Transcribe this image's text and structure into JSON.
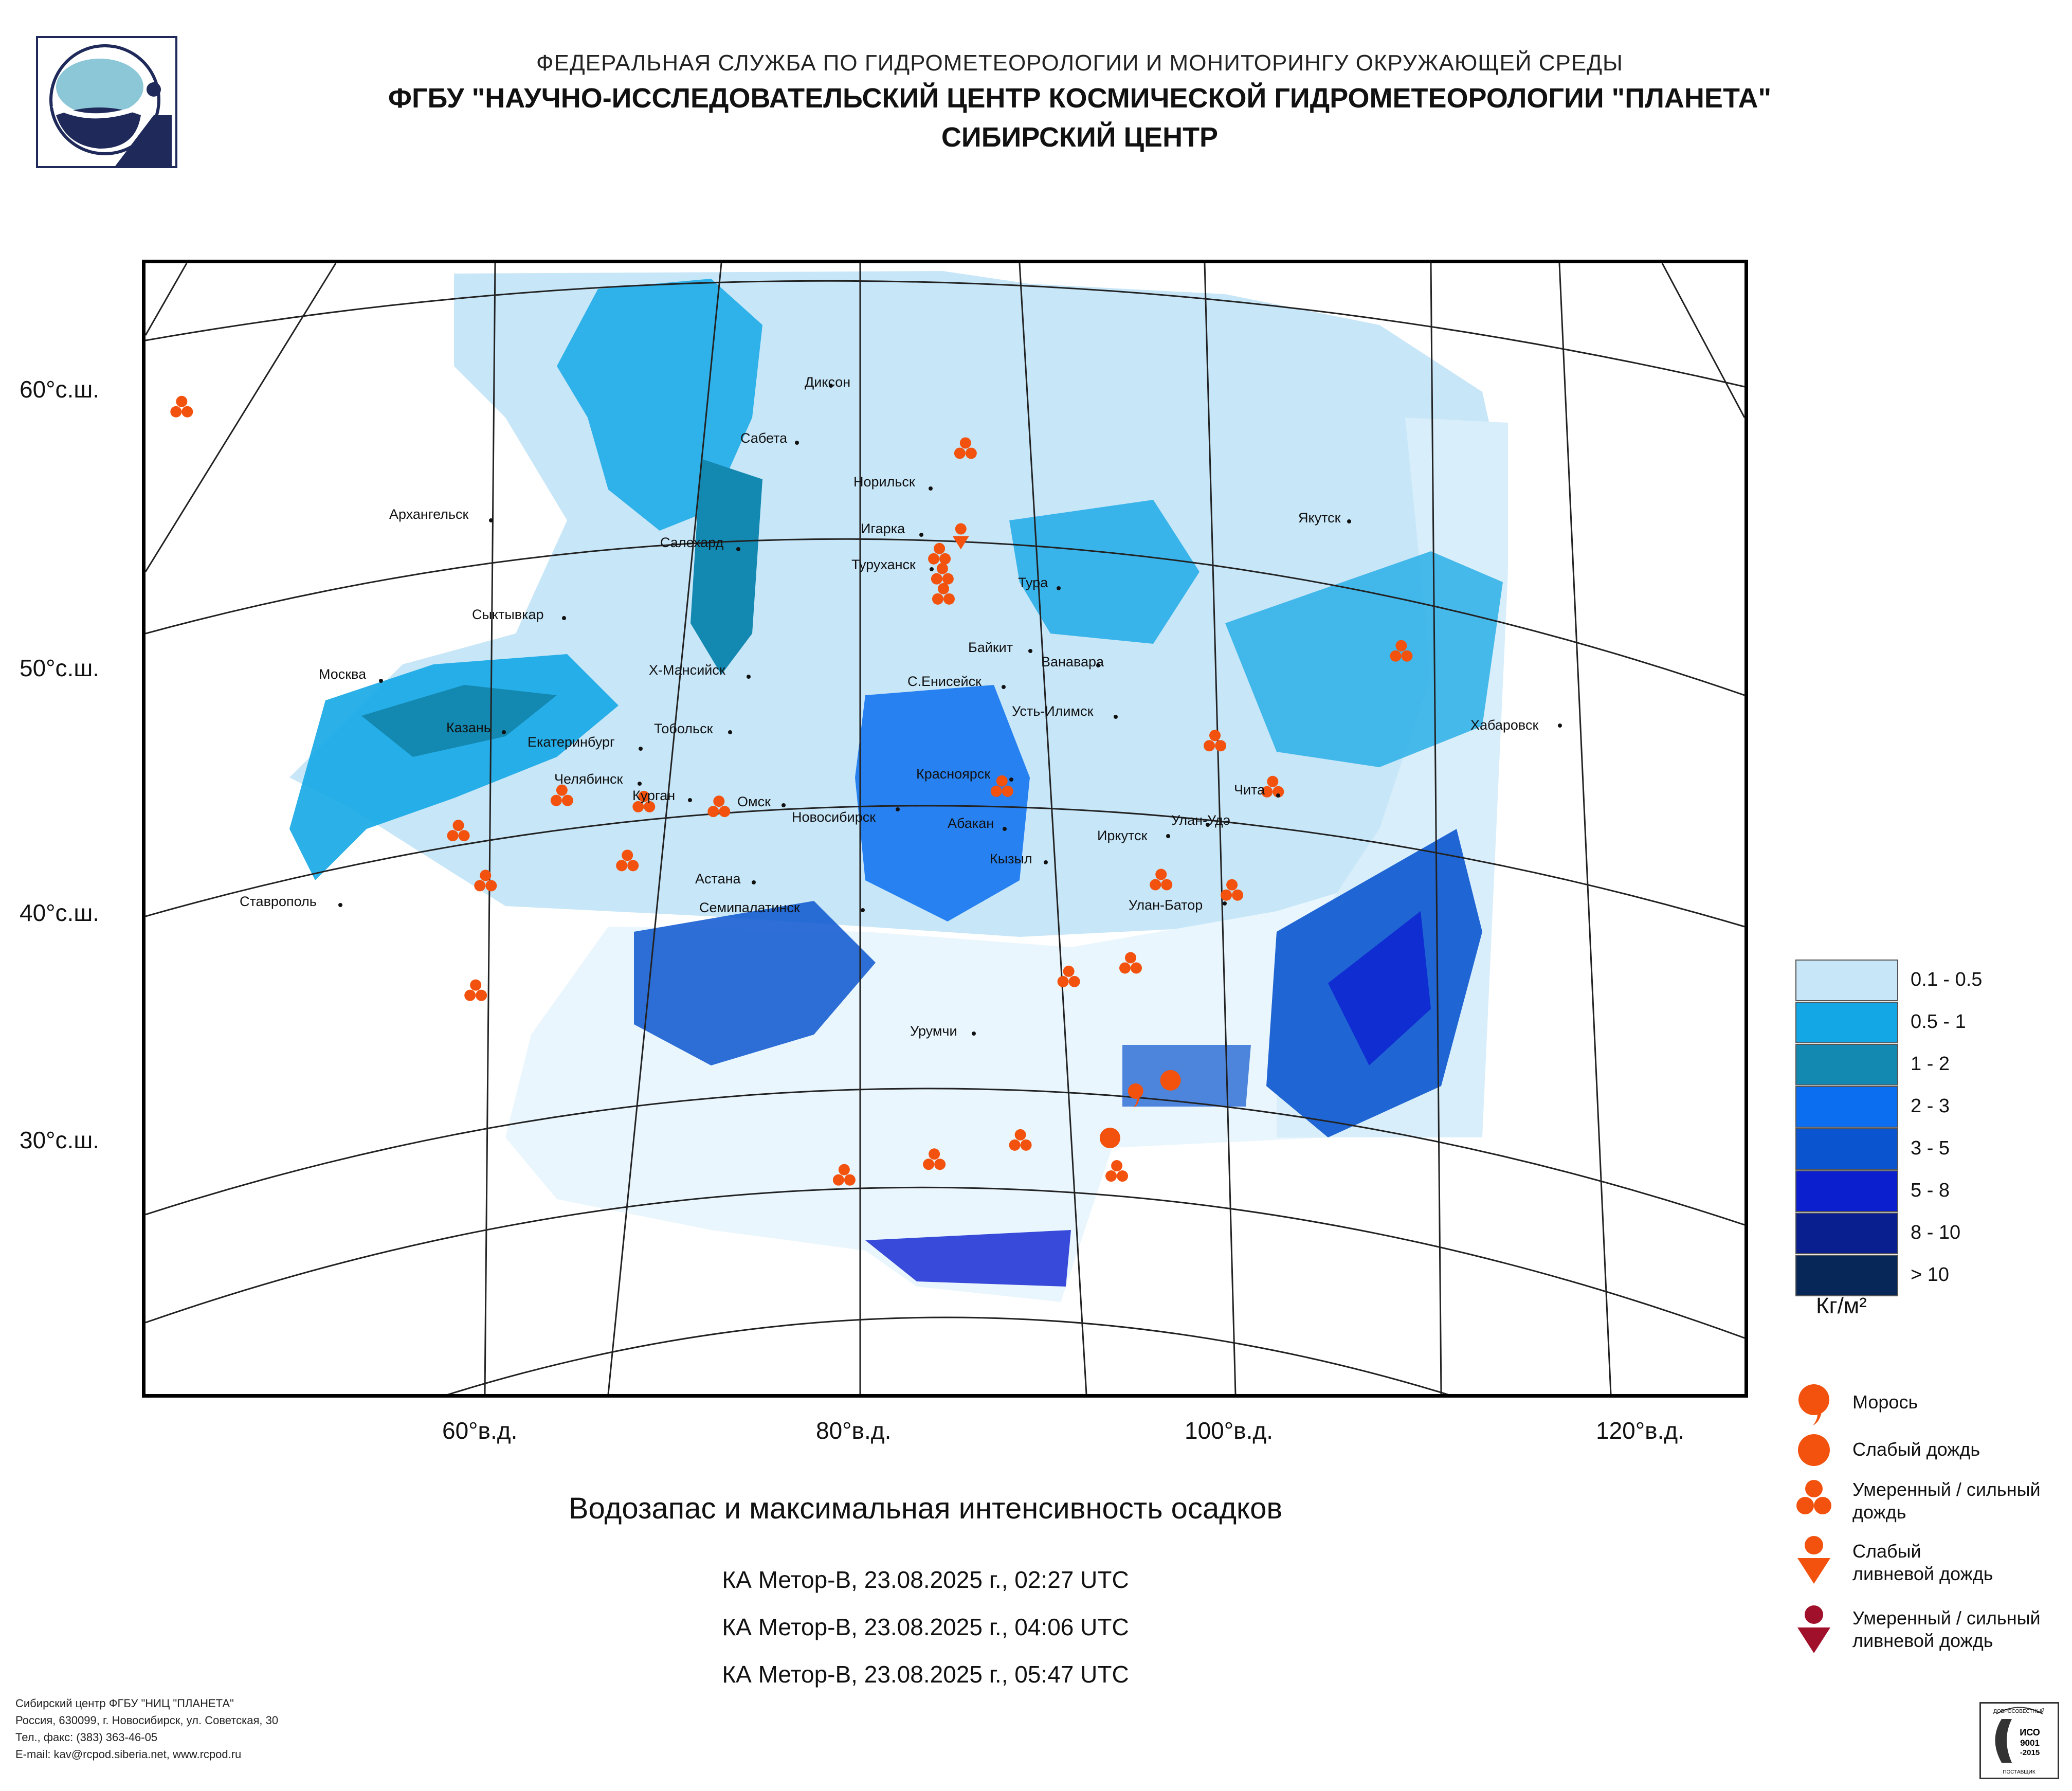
{
  "header": {
    "line1": "ФЕДЕРАЛЬНАЯ СЛУЖБА ПО ГИДРОМЕТЕОРОЛОГИИ И МОНИТОРИНГУ ОКРУЖАЮЩЕЙ СРЕДЫ",
    "line2": "ФГБУ \"НАУЧНО-ИССЛЕДОВАТЕЛЬСКИЙ ЦЕНТР КОСМИЧЕСКОЙ ГИДРОМЕТЕОРОЛОГИИ \"ПЛАНЕТА\"",
    "line3": "СИБИРСКИЙ ЦЕНТР"
  },
  "map": {
    "latitude_labels": [
      "60°с.ш.",
      "50°с.ш.",
      "40°с.ш.",
      "30°с.ш."
    ],
    "longitude_labels": [
      "60°в.д.",
      "80°в.д.",
      "100°в.д.",
      "120°в.д."
    ],
    "cities": [
      "Диксон",
      "Сабета",
      "Норильск",
      "Архангельск",
      "Салехард",
      "Игарка",
      "Туруханск",
      "Якутск",
      "Тура",
      "Сыктывкар",
      "Байкит",
      "Ванавара",
      "Москва",
      "Х-Мансийск",
      "С.Енисейск",
      "Усть-Илимск",
      "Казань",
      "Тобольск",
      "Екатеринбург",
      "Хабаровск",
      "Красноярск",
      "Челябинск",
      "Курган",
      "Омск",
      "Новосибирск",
      "Абакан",
      "Чита",
      "Улан-Удэ",
      "Иркутск",
      "Кызыл",
      "Астана",
      "Ставрополь",
      "Семипалатинск",
      "Улан-Батор",
      "Урумчи"
    ],
    "precip_markers": [
      {
        "lat": 65.8,
        "lon": 72.0,
        "type": "moderate-rain"
      },
      {
        "lat": 64.7,
        "lon": 72.0,
        "type": "moderate-rain"
      },
      {
        "lat": 64.4,
        "lon": 100.3,
        "type": "moderate-rain"
      },
      {
        "lat": 65.5,
        "lon": 104.5,
        "type": "moderate-rain"
      },
      {
        "lat": 52.8,
        "lon": 43.0,
        "type": "moderate-rain"
      },
      {
        "lat": 56.8,
        "lon": 86.0,
        "type": "moderate-rain"
      },
      {
        "lat": 53.8,
        "lon": 85.4,
        "type": "light-shower"
      },
      {
        "lat": 53.2,
        "lon": 84.2,
        "type": "moderate-rain"
      },
      {
        "lat": 52.5,
        "lon": 84.3,
        "type": "moderate-rain"
      },
      {
        "lat": 51.8,
        "lon": 84.3,
        "type": "moderate-rain"
      },
      {
        "lat": 44.0,
        "lon": 66.5,
        "type": "moderate-rain"
      },
      {
        "lat": 44.2,
        "lon": 70.2,
        "type": "moderate-rain"
      },
      {
        "lat": 44.3,
        "lon": 73.6,
        "type": "moderate-rain"
      },
      {
        "lat": 45.0,
        "lon": 86.5,
        "type": "moderate-rain"
      },
      {
        "lat": 45.5,
        "lon": 96.5,
        "type": "moderate-rain"
      },
      {
        "lat": 46.8,
        "lon": 106.0,
        "type": "moderate-rain"
      },
      {
        "lat": 42.1,
        "lon": 62.3,
        "type": "moderate-rain"
      },
      {
        "lat": 42.1,
        "lon": 69.8,
        "type": "moderate-rain"
      },
      {
        "lat": 43.5,
        "lon": 98.6,
        "type": "moderate-rain"
      },
      {
        "lat": 40.6,
        "lon": 63.9,
        "type": "moderate-rain"
      },
      {
        "lat": 41.1,
        "lon": 93.0,
        "type": "moderate-rain"
      },
      {
        "lat": 40.3,
        "lon": 95.9,
        "type": "moderate-rain"
      },
      {
        "lat": 38.2,
        "lon": 88.6,
        "type": "moderate-rain"
      },
      {
        "lat": 38.4,
        "lon": 91.2,
        "type": "moderate-rain"
      },
      {
        "lat": 36.8,
        "lon": 64.4,
        "type": "moderate-rain"
      },
      {
        "lat": 34.0,
        "lon": 90.7,
        "type": "drizzle"
      },
      {
        "lat": 34.2,
        "lon": 92.1,
        "type": "light-rain"
      },
      {
        "lat": 31.7,
        "lon": 79.4,
        "type": "moderate-rain"
      },
      {
        "lat": 32.2,
        "lon": 82.8,
        "type": "moderate-rain"
      },
      {
        "lat": 32.7,
        "lon": 86.1,
        "type": "moderate-rain"
      },
      {
        "lat": 32.5,
        "lon": 89.5,
        "type": "light-rain"
      },
      {
        "lat": 31.3,
        "lon": 89.6,
        "type": "moderate-rain"
      }
    ]
  },
  "title": "Водозапас и максимальная интенсивность осадков",
  "passes": [
    "КА Метор-В, 23.08.2025 г., 02:27 UTC",
    "КА Метор-В, 23.08.2025 г., 04:06 UTC",
    "КА Метор-В, 23.08.2025 г., 05:47 UTC"
  ],
  "legend": {
    "water_classes": [
      {
        "label": "0.1 - 0.5",
        "color": "#c7e6f8"
      },
      {
        "label": "0.5 - 1",
        "color": "#14a7e6"
      },
      {
        "label": "1 - 2",
        "color": "#1388b0"
      },
      {
        "label": "2 - 3",
        "color": "#0b6ef0"
      },
      {
        "label": "3 - 5",
        "color": "#0a55cf"
      },
      {
        "label": "5 - 8",
        "color": "#0b1fcf"
      },
      {
        "label": "8 - 10",
        "color": "#0a1f8f"
      },
      {
        "label": "> 10",
        "color": "#062757"
      }
    ],
    "units": "Кг/м²",
    "precip_types": [
      {
        "label": "Морось",
        "icon": "drizzle-icon"
      },
      {
        "label": "Слабый дождь",
        "icon": "light-rain-icon"
      },
      {
        "label": "Умеренный / сильный дождь",
        "icon": "moderate-rain-icon"
      },
      {
        "label": "Слабый ливневой дождь",
        "icon": "light-shower-icon"
      },
      {
        "label": "Умеренный / сильный ливневой дождь",
        "icon": "heavy-shower-icon"
      }
    ],
    "marker_color": "#f2520e",
    "heavy_marker_color": "#a0102a"
  },
  "footer": [
    "Сибирский центр ФГБУ \"НИЦ \"ПЛАНЕТА\"",
    "Россия, 630099, г. Новосибирск, ул. Советская, 30",
    "Тел., факс: (383) 363-46-05",
    "E-mail: kav@rcpod.siberia.net, www.rcpod.ru"
  ],
  "iso_badge": [
    "ДОБРОСОВЕСТНЫЙ",
    "ИСО",
    "9001",
    "-2015",
    "ПОСТАВЩИК"
  ]
}
